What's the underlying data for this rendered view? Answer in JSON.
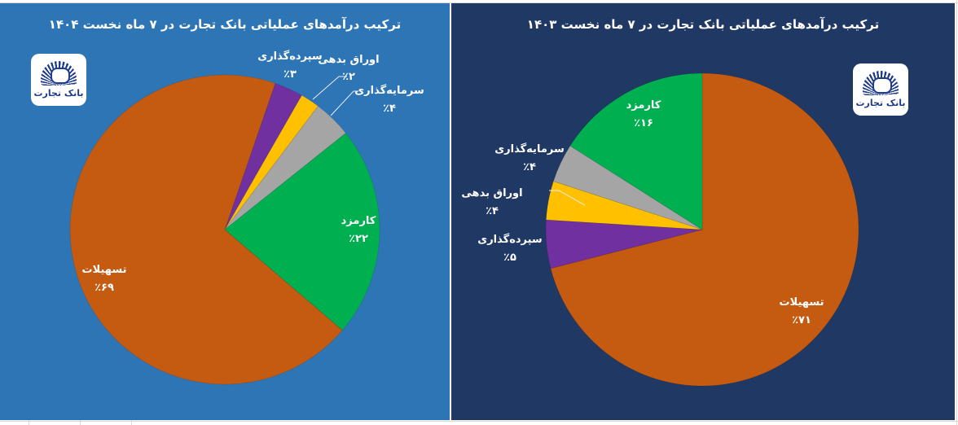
{
  "colors": {
    "left_panel_bg": "#2e75b6",
    "right_panel_bg": "#1f3864",
    "facilities": "#c55a11",
    "fees": "#00b050",
    "investment": "#a5a5a5",
    "debt_securities": "#ffc000",
    "deposit": "#7030a0"
  },
  "logo": {
    "text": "بانک تجارت"
  },
  "chart_data": [
    {
      "type": "pie",
      "title": "ترکیب درآمدهای عملیاتی بانک تجارت در ۷ ماه نخست ۱۴۰۴",
      "start_angle_deg": 19,
      "direction": "clockwise",
      "categories": [
        "سپرده‌گذاری",
        "اوراق بدهی",
        "سرمایه‌گذاری",
        "کارمزد",
        "تسهیلات"
      ],
      "values": [
        3,
        2,
        4,
        22,
        69
      ],
      "value_labels": [
        "٪۳",
        "٪۲",
        "٪۴",
        "٪۲۲",
        "٪۶۹"
      ],
      "colors": [
        "#7030a0",
        "#ffc000",
        "#a5a5a5",
        "#00b050",
        "#c55a11"
      ],
      "legend": "none (data labels)"
    },
    {
      "type": "pie",
      "title": "ترکیب درآمدهای عملیاتی بانک تجارت در ۷ ماه نخست ۱۴۰۳",
      "start_angle_deg": 0,
      "direction": "clockwise",
      "categories": [
        "تسهیلات",
        "سپرده‌گذاری",
        "اوراق بدهی",
        "سرمایه‌گذاری",
        "کارمزد"
      ],
      "values": [
        71,
        5,
        4,
        4,
        16
      ],
      "value_labels": [
        "٪۷۱",
        "٪۵",
        "٪۴",
        "٪۴",
        "٪۱۶"
      ],
      "colors": [
        "#c55a11",
        "#7030a0",
        "#ffc000",
        "#a5a5a5",
        "#00b050"
      ],
      "legend": "none (data labels)"
    }
  ],
  "left": {
    "title": "ترکیب درآمدهای عملیاتی بانک تجارت در ۷ ماه نخست ۱۴۰۴",
    "labels": {
      "deposit": {
        "name": "سپرده‌گذاری",
        "pct": "٪۳"
      },
      "debt": {
        "name": "اوراق بدهی",
        "pct": "٪۲"
      },
      "investment": {
        "name": "سرمایه‌گذاری",
        "pct": "٪۴"
      },
      "fees": {
        "name": "کارمزد",
        "pct": "٪۲۲"
      },
      "facilities": {
        "name": "تسهیلات",
        "pct": "٪۶۹"
      }
    }
  },
  "right": {
    "title": "ترکیب درآمدهای عملیاتی بانک تجارت در ۷ ماه نخست ۱۴۰۳",
    "labels": {
      "fees": {
        "name": "کارمزد",
        "pct": "٪۱۶"
      },
      "investment": {
        "name": "سرمایه‌گذاری",
        "pct": "٪۴"
      },
      "debt": {
        "name": "اوراق بدهی",
        "pct": "٪۴"
      },
      "deposit": {
        "name": "سپرده‌گذاری",
        "pct": "٪۵"
      },
      "facilities": {
        "name": "تسهیلات",
        "pct": "٪۷۱"
      }
    }
  }
}
